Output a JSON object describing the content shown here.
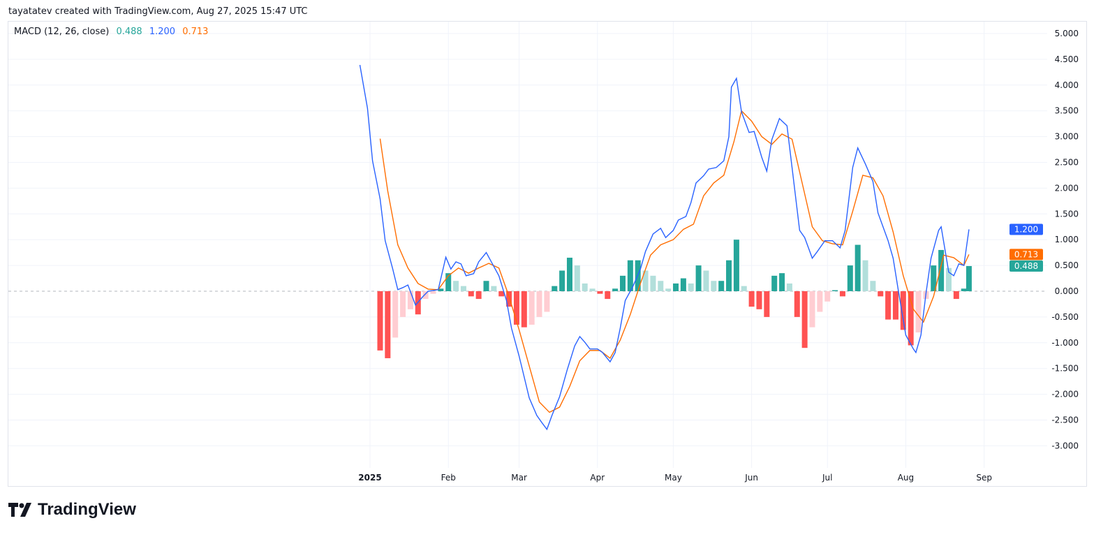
{
  "credit": "tayatatev created with TradingView.com, Aug 27, 2025 15:47 UTC",
  "legend": {
    "name": "MACD (12, 26, close)",
    "histogram": "0.488",
    "macd": "1.200",
    "signal": "0.713"
  },
  "logo": {
    "text": "TradingView"
  },
  "colors": {
    "macd": "#2962ff",
    "signal": "#ff6d00",
    "hist_up_strong": "#26a69a",
    "hist_up_weak": "#b2dfdb",
    "hist_down_strong": "#ff5252",
    "hist_down_weak": "#ffcdd2",
    "grid": "#f0f3fa"
  },
  "chart_data": {
    "type": "line",
    "title": "MACD (12, 26, close)",
    "ylim": [
      -3.5,
      5.3
    ],
    "yticks": [
      "5.000",
      "4.500",
      "4.000",
      "3.500",
      "3.000",
      "2.500",
      "2.000",
      "1.500",
      "1.000",
      "0.500",
      "0.000",
      "-0.500",
      "-1.000",
      "-1.500",
      "-2.000",
      "-2.500",
      "-3.000"
    ],
    "xticks": [
      {
        "label": "2025",
        "date": "2025-01-01",
        "bold": true
      },
      {
        "label": "Feb",
        "date": "2025-02-01"
      },
      {
        "label": "Mar",
        "date": "2025-03-01"
      },
      {
        "label": "Apr",
        "date": "2025-04-01"
      },
      {
        "label": "May",
        "date": "2025-05-01"
      },
      {
        "label": "Jun",
        "date": "2025-06-01"
      },
      {
        "label": "Jul",
        "date": "2025-07-01"
      },
      {
        "label": "Aug",
        "date": "2025-08-01"
      },
      {
        "label": "Sep",
        "date": "2025-09-01"
      }
    ],
    "price_labels": [
      {
        "value": 1.2,
        "text": "1.200",
        "series": "macd"
      },
      {
        "value": 0.713,
        "text": "0.713",
        "series": "signal"
      },
      {
        "value": 0.488,
        "text": "0.488",
        "series": "histogram"
      }
    ],
    "macd": [
      [
        "2024-12-28",
        4.39
      ],
      [
        "2024-12-31",
        3.55
      ],
      [
        "2025-01-02",
        2.53
      ],
      [
        "2025-01-05",
        1.79
      ],
      [
        "2025-01-07",
        0.98
      ],
      [
        "2025-01-10",
        0.43
      ],
      [
        "2025-01-12",
        0.03
      ],
      [
        "2025-01-14",
        0.07
      ],
      [
        "2025-01-16",
        0.12
      ],
      [
        "2025-01-19",
        -0.27
      ],
      [
        "2025-01-22",
        -0.1
      ],
      [
        "2025-01-24",
        0.0
      ],
      [
        "2025-01-28",
        0.03
      ],
      [
        "2025-01-31",
        0.66
      ],
      [
        "2025-02-02",
        0.43
      ],
      [
        "2025-02-04",
        0.57
      ],
      [
        "2025-02-06",
        0.53
      ],
      [
        "2025-02-08",
        0.3
      ],
      [
        "2025-02-11",
        0.34
      ],
      [
        "2025-02-13",
        0.57
      ],
      [
        "2025-02-16",
        0.75
      ],
      [
        "2025-02-18",
        0.57
      ],
      [
        "2025-02-21",
        0.3
      ],
      [
        "2025-02-24",
        -0.18
      ],
      [
        "2025-02-26",
        -0.72
      ],
      [
        "2025-03-01",
        -1.26
      ],
      [
        "2025-03-02",
        -1.46
      ],
      [
        "2025-03-05",
        -2.07
      ],
      [
        "2025-03-08",
        -2.41
      ],
      [
        "2025-03-10",
        -2.55
      ],
      [
        "2025-03-12",
        -2.68
      ],
      [
        "2025-03-14",
        -2.41
      ],
      [
        "2025-03-17",
        -2.05
      ],
      [
        "2025-03-20",
        -1.53
      ],
      [
        "2025-03-23",
        -1.06
      ],
      [
        "2025-03-25",
        -0.88
      ],
      [
        "2025-03-27",
        -0.99
      ],
      [
        "2025-03-29",
        -1.12
      ],
      [
        "2025-04-01",
        -1.12
      ],
      [
        "2025-04-03",
        -1.19
      ],
      [
        "2025-04-06",
        -1.37
      ],
      [
        "2025-04-08",
        -1.19
      ],
      [
        "2025-04-10",
        -0.72
      ],
      [
        "2025-04-12",
        -0.18
      ],
      [
        "2025-04-15",
        0.09
      ],
      [
        "2025-04-18",
        0.43
      ],
      [
        "2025-04-20",
        0.77
      ],
      [
        "2025-04-23",
        1.11
      ],
      [
        "2025-04-26",
        1.22
      ],
      [
        "2025-04-28",
        1.04
      ],
      [
        "2025-05-01",
        1.18
      ],
      [
        "2025-05-03",
        1.38
      ],
      [
        "2025-05-06",
        1.45
      ],
      [
        "2025-05-08",
        1.72
      ],
      [
        "2025-05-10",
        2.1
      ],
      [
        "2025-05-13",
        2.24
      ],
      [
        "2025-05-15",
        2.37
      ],
      [
        "2025-05-18",
        2.4
      ],
      [
        "2025-05-21",
        2.53
      ],
      [
        "2025-05-23",
        3.0
      ],
      [
        "2025-05-24",
        3.96
      ],
      [
        "2025-05-26",
        4.13
      ],
      [
        "2025-05-28",
        3.48
      ],
      [
        "2025-05-31",
        3.08
      ],
      [
        "2025-06-02",
        3.1
      ],
      [
        "2025-06-05",
        2.6
      ],
      [
        "2025-06-07",
        2.33
      ],
      [
        "2025-06-09",
        2.94
      ],
      [
        "2025-06-12",
        3.35
      ],
      [
        "2025-06-15",
        3.21
      ],
      [
        "2025-06-17",
        2.4
      ],
      [
        "2025-06-20",
        1.18
      ],
      [
        "2025-06-22",
        1.04
      ],
      [
        "2025-06-25",
        0.64
      ],
      [
        "2025-06-27",
        0.77
      ],
      [
        "2025-06-30",
        0.98
      ],
      [
        "2025-07-03",
        0.98
      ],
      [
        "2025-07-06",
        0.84
      ],
      [
        "2025-07-08",
        1.18
      ],
      [
        "2025-07-11",
        2.4
      ],
      [
        "2025-07-13",
        2.78
      ],
      [
        "2025-07-16",
        2.47
      ],
      [
        "2025-07-19",
        2.13
      ],
      [
        "2025-07-21",
        1.52
      ],
      [
        "2025-07-25",
        0.98
      ],
      [
        "2025-07-27",
        0.64
      ],
      [
        "2025-07-29",
        0.03
      ],
      [
        "2025-08-01",
        -0.85
      ],
      [
        "2025-08-04",
        -1.12
      ],
      [
        "2025-08-05",
        -1.19
      ],
      [
        "2025-08-07",
        -0.85
      ],
      [
        "2025-08-09",
        -0.04
      ],
      [
        "2025-08-11",
        0.64
      ],
      [
        "2025-08-14",
        1.18
      ],
      [
        "2025-08-15",
        1.25
      ],
      [
        "2025-08-18",
        0.37
      ],
      [
        "2025-08-20",
        0.3
      ],
      [
        "2025-08-22",
        0.53
      ],
      [
        "2025-08-24",
        0.5
      ],
      [
        "2025-08-26",
        1.2
      ]
    ],
    "signal": [
      [
        "2025-01-05",
        2.96
      ],
      [
        "2025-01-08",
        1.95
      ],
      [
        "2025-01-12",
        0.9
      ],
      [
        "2025-01-16",
        0.45
      ],
      [
        "2025-01-20",
        0.15
      ],
      [
        "2025-01-24",
        0.04
      ],
      [
        "2025-01-28",
        0.03
      ],
      [
        "2025-02-01",
        0.3
      ],
      [
        "2025-02-05",
        0.45
      ],
      [
        "2025-02-09",
        0.35
      ],
      [
        "2025-02-13",
        0.45
      ],
      [
        "2025-02-17",
        0.54
      ],
      [
        "2025-02-21",
        0.45
      ],
      [
        "2025-02-25",
        -0.1
      ],
      [
        "2025-03-01",
        -0.75
      ],
      [
        "2025-03-05",
        -1.45
      ],
      [
        "2025-03-09",
        -2.15
      ],
      [
        "2025-03-13",
        -2.35
      ],
      [
        "2025-03-17",
        -2.25
      ],
      [
        "2025-03-21",
        -1.85
      ],
      [
        "2025-03-25",
        -1.35
      ],
      [
        "2025-03-29",
        -1.15
      ],
      [
        "2025-04-02",
        -1.15
      ],
      [
        "2025-04-06",
        -1.3
      ],
      [
        "2025-04-10",
        -0.95
      ],
      [
        "2025-04-14",
        -0.45
      ],
      [
        "2025-04-18",
        0.15
      ],
      [
        "2025-04-22",
        0.7
      ],
      [
        "2025-04-26",
        0.9
      ],
      [
        "2025-05-01",
        1.0
      ],
      [
        "2025-05-05",
        1.2
      ],
      [
        "2025-05-09",
        1.3
      ],
      [
        "2025-05-13",
        1.85
      ],
      [
        "2025-05-17",
        2.1
      ],
      [
        "2025-05-21",
        2.25
      ],
      [
        "2025-05-25",
        2.9
      ],
      [
        "2025-05-28",
        3.5
      ],
      [
        "2025-06-01",
        3.3
      ],
      [
        "2025-06-05",
        3.0
      ],
      [
        "2025-06-09",
        2.85
      ],
      [
        "2025-06-13",
        3.05
      ],
      [
        "2025-06-17",
        2.95
      ],
      [
        "2025-06-21",
        2.1
      ],
      [
        "2025-06-25",
        1.25
      ],
      [
        "2025-06-29",
        0.98
      ],
      [
        "2025-07-03",
        0.92
      ],
      [
        "2025-07-07",
        0.9
      ],
      [
        "2025-07-11",
        1.55
      ],
      [
        "2025-07-15",
        2.25
      ],
      [
        "2025-07-19",
        2.2
      ],
      [
        "2025-07-23",
        1.85
      ],
      [
        "2025-07-27",
        1.15
      ],
      [
        "2025-07-31",
        0.3
      ],
      [
        "2025-08-04",
        -0.35
      ],
      [
        "2025-08-08",
        -0.6
      ],
      [
        "2025-08-12",
        -0.1
      ],
      [
        "2025-08-16",
        0.7
      ],
      [
        "2025-08-20",
        0.65
      ],
      [
        "2025-08-24",
        0.5
      ],
      [
        "2025-08-26",
        0.713
      ]
    ],
    "histogram": [
      [
        "2025-01-05",
        -1.15
      ],
      [
        "2025-01-08",
        -1.3
      ],
      [
        "2025-01-11",
        -0.9
      ],
      [
        "2025-01-14",
        -0.5
      ],
      [
        "2025-01-17",
        -0.35
      ],
      [
        "2025-01-20",
        -0.45
      ],
      [
        "2025-01-23",
        -0.15
      ],
      [
        "2025-01-26",
        -0.05
      ],
      [
        "2025-01-29",
        0.05
      ],
      [
        "2025-02-01",
        0.35
      ],
      [
        "2025-02-04",
        0.2
      ],
      [
        "2025-02-07",
        0.1
      ],
      [
        "2025-02-10",
        -0.1
      ],
      [
        "2025-02-13",
        -0.15
      ],
      [
        "2025-02-16",
        0.2
      ],
      [
        "2025-02-19",
        0.1
      ],
      [
        "2025-02-22",
        -0.1
      ],
      [
        "2025-02-25",
        -0.3
      ],
      [
        "2025-02-28",
        -0.65
      ],
      [
        "2025-03-03",
        -0.7
      ],
      [
        "2025-03-06",
        -0.65
      ],
      [
        "2025-03-09",
        -0.5
      ],
      [
        "2025-03-12",
        -0.4
      ],
      [
        "2025-03-15",
        0.1
      ],
      [
        "2025-03-18",
        0.4
      ],
      [
        "2025-03-21",
        0.65
      ],
      [
        "2025-03-24",
        0.5
      ],
      [
        "2025-03-27",
        0.15
      ],
      [
        "2025-03-30",
        0.05
      ],
      [
        "2025-04-02",
        -0.05
      ],
      [
        "2025-04-05",
        -0.15
      ],
      [
        "2025-04-08",
        0.05
      ],
      [
        "2025-04-11",
        0.3
      ],
      [
        "2025-04-14",
        0.6
      ],
      [
        "2025-04-17",
        0.6
      ],
      [
        "2025-04-20",
        0.4
      ],
      [
        "2025-04-23",
        0.3
      ],
      [
        "2025-04-26",
        0.2
      ],
      [
        "2025-04-29",
        0.05
      ],
      [
        "2025-05-02",
        0.15
      ],
      [
        "2025-05-05",
        0.25
      ],
      [
        "2025-05-08",
        0.15
      ],
      [
        "2025-05-11",
        0.5
      ],
      [
        "2025-05-14",
        0.4
      ],
      [
        "2025-05-17",
        0.2
      ],
      [
        "2025-05-20",
        0.2
      ],
      [
        "2025-05-23",
        0.6
      ],
      [
        "2025-05-26",
        1.0
      ],
      [
        "2025-05-29",
        0.1
      ],
      [
        "2025-06-01",
        -0.3
      ],
      [
        "2025-06-04",
        -0.35
      ],
      [
        "2025-06-07",
        -0.5
      ],
      [
        "2025-06-10",
        0.3
      ],
      [
        "2025-06-13",
        0.35
      ],
      [
        "2025-06-16",
        0.15
      ],
      [
        "2025-06-19",
        -0.5
      ],
      [
        "2025-06-22",
        -1.1
      ],
      [
        "2025-06-25",
        -0.7
      ],
      [
        "2025-06-28",
        -0.4
      ],
      [
        "2025-07-01",
        -0.2
      ],
      [
        "2025-07-04",
        0.02
      ],
      [
        "2025-07-07",
        -0.1
      ],
      [
        "2025-07-10",
        0.5
      ],
      [
        "2025-07-13",
        0.9
      ],
      [
        "2025-07-16",
        0.6
      ],
      [
        "2025-07-19",
        0.2
      ],
      [
        "2025-07-22",
        -0.1
      ],
      [
        "2025-07-25",
        -0.55
      ],
      [
        "2025-07-28",
        -0.55
      ],
      [
        "2025-07-31",
        -0.75
      ],
      [
        "2025-08-03",
        -1.05
      ],
      [
        "2025-08-06",
        -0.8
      ],
      [
        "2025-08-09",
        -0.15
      ],
      [
        "2025-08-12",
        0.5
      ],
      [
        "2025-08-15",
        0.8
      ],
      [
        "2025-08-18",
        0.45
      ],
      [
        "2025-08-21",
        -0.15
      ],
      [
        "2025-08-24",
        0.05
      ],
      [
        "2025-08-26",
        0.488
      ]
    ]
  }
}
